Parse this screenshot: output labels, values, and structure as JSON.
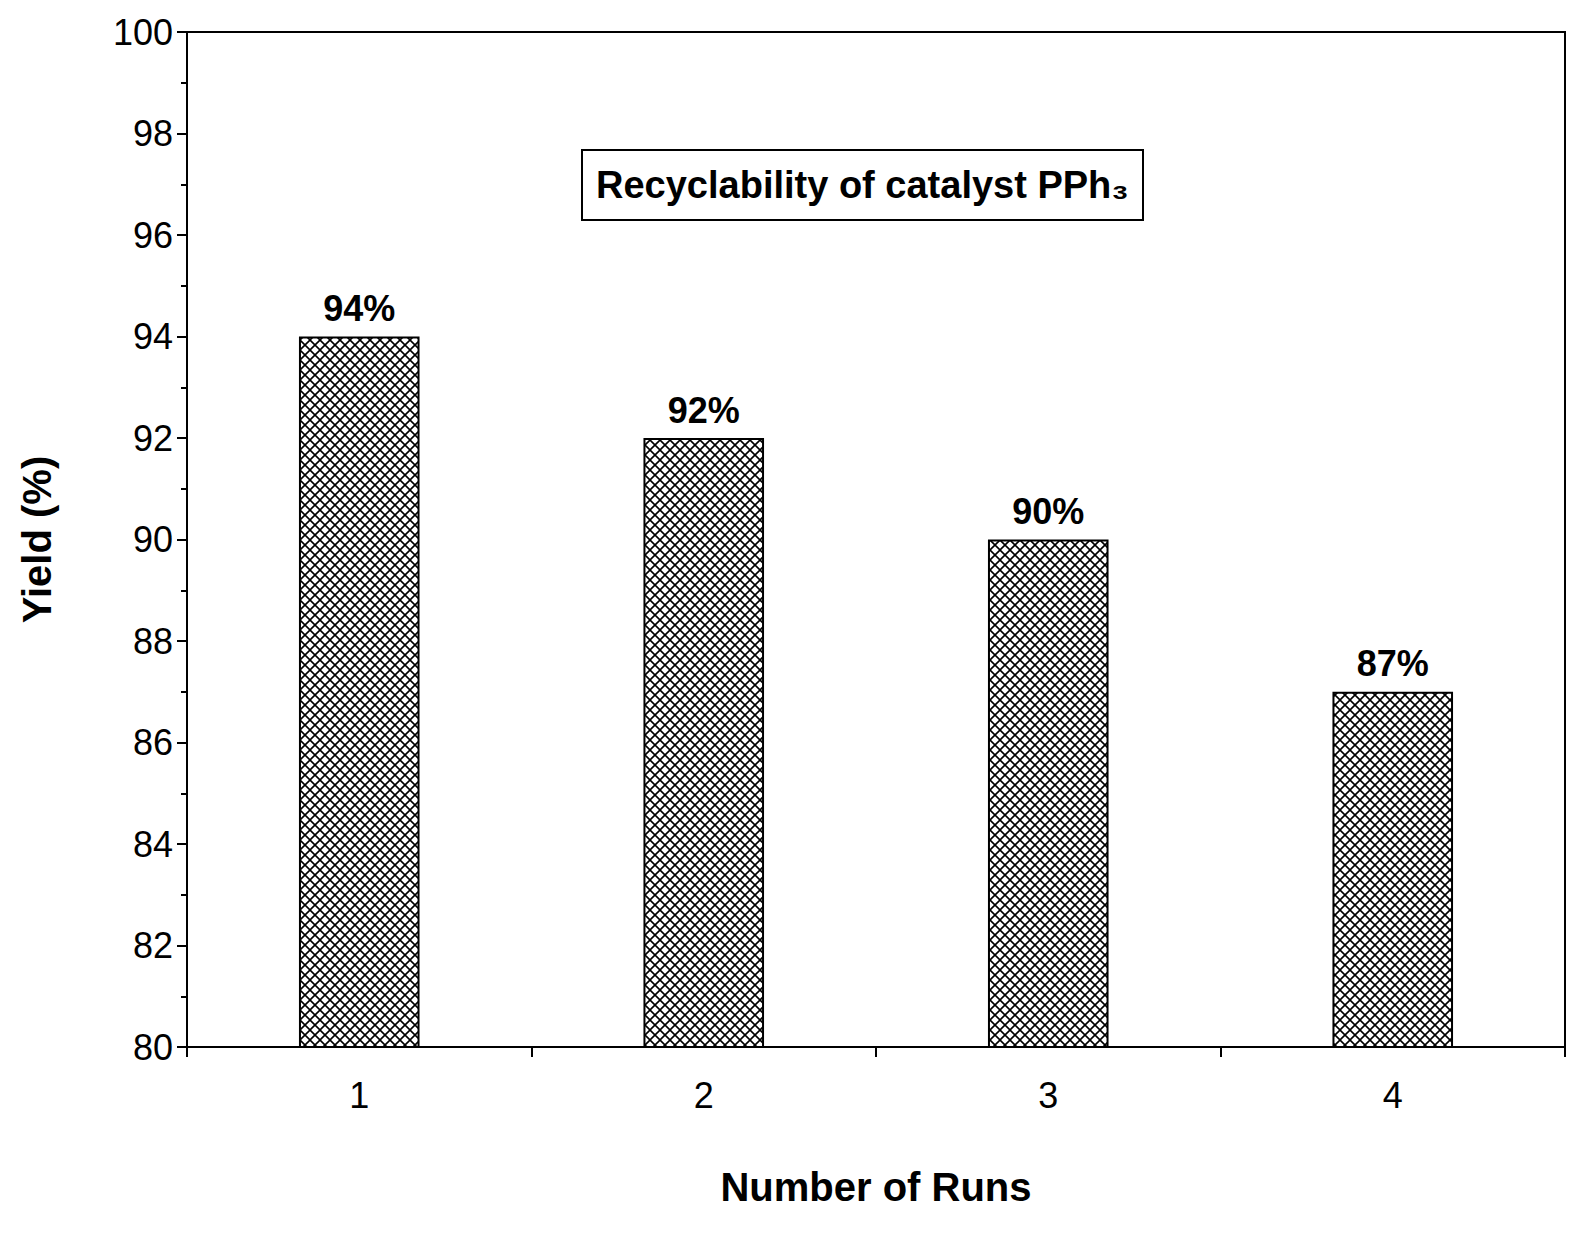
{
  "chart_data": {
    "type": "bar",
    "title": "Recyclability of catalyst PPh₃",
    "x_label": "Number of Runs",
    "y_label": "Yield (%)",
    "categories": [
      "1",
      "2",
      "3",
      "4"
    ],
    "values": [
      94,
      92,
      90,
      87
    ],
    "value_labels": [
      "94%",
      "92%",
      "90%",
      "87%"
    ],
    "data_labels": true,
    "color": "#000000",
    "ylim": [
      80,
      100
    ],
    "yticks": [
      80,
      82,
      84,
      86,
      88,
      90,
      92,
      94,
      96,
      98,
      100
    ],
    "grid": false
  }
}
